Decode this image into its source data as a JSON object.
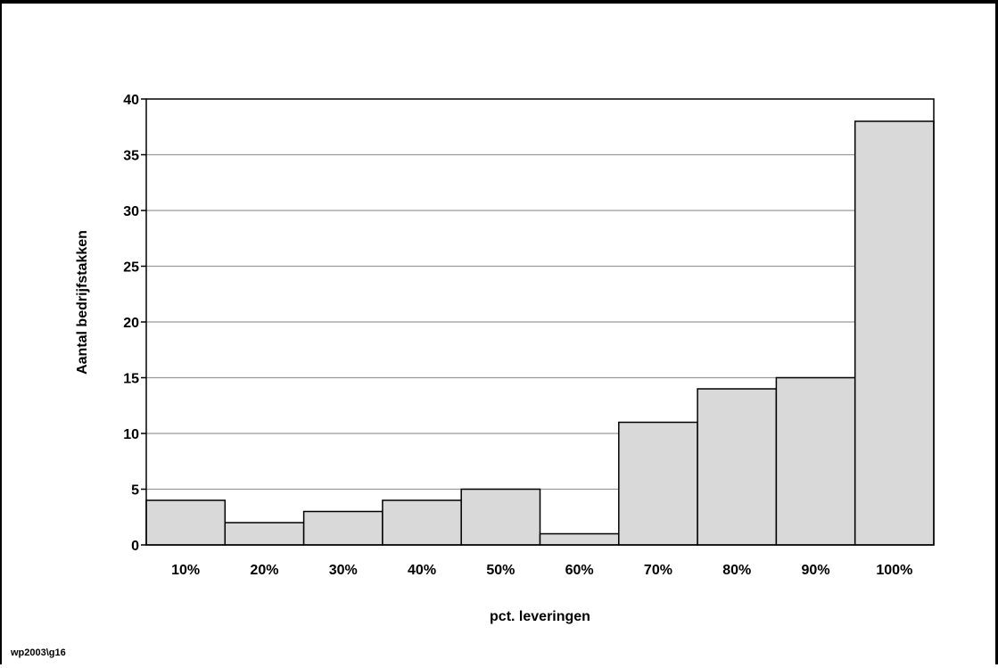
{
  "footnote": "wp2003\\g16",
  "chart_data": {
    "type": "bar",
    "title": "",
    "xlabel": "pct. leveringen",
    "ylabel": "Aantal bedrijfstakken",
    "categories": [
      "10%",
      "20%",
      "30%",
      "40%",
      "50%",
      "60%",
      "70%",
      "80%",
      "90%",
      "100%"
    ],
    "values": [
      4,
      2,
      3,
      4,
      5,
      1,
      11,
      14,
      15,
      38
    ],
    "ylim": [
      0,
      40
    ],
    "yticks": [
      0,
      5,
      10,
      15,
      20,
      25,
      30,
      35,
      40
    ],
    "grid": true,
    "legend": "none",
    "bar_color": "#d9d9d9",
    "edge_color": "#000000",
    "grid_color": "#999999"
  }
}
